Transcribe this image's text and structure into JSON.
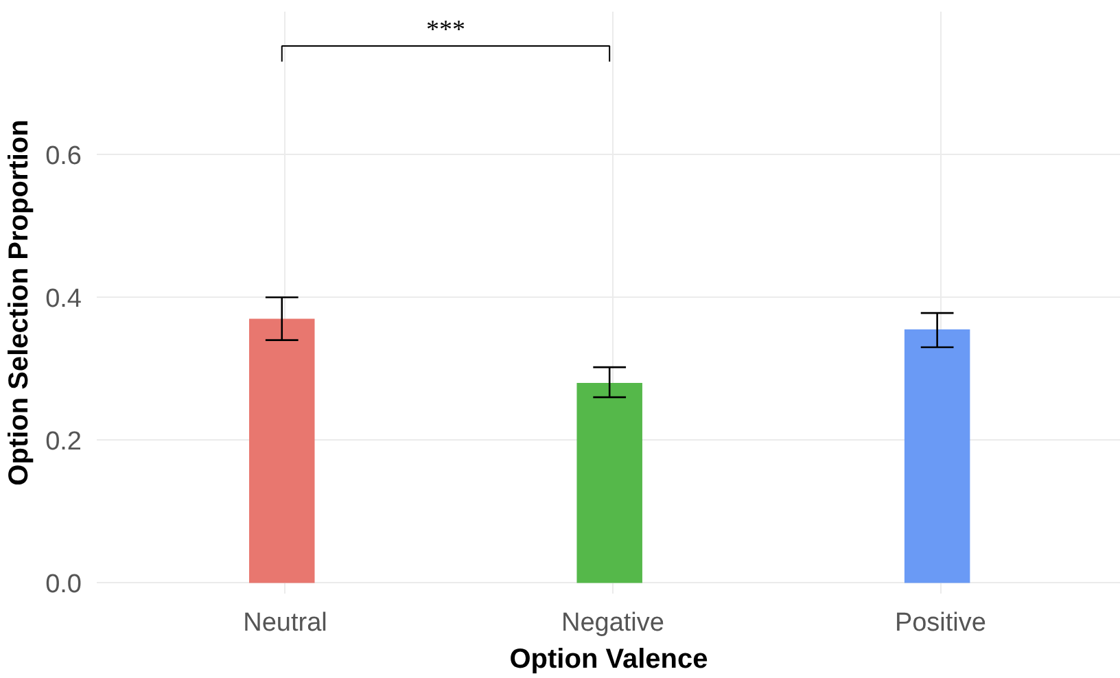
{
  "chart_data": {
    "type": "bar",
    "xlabel": "Option Valence",
    "ylabel": "Option Selection Proportion",
    "categories": [
      "Neutral",
      "Negative",
      "Positive"
    ],
    "series": [
      {
        "colors": [
          "#e8776f",
          "#55b84a",
          "#6a9af5"
        ],
        "values": [
          0.37,
          0.28,
          0.355
        ],
        "errors": [
          [
            0.34,
            0.4
          ],
          [
            0.26,
            0.302
          ],
          [
            0.33,
            0.378
          ]
        ]
      }
    ],
    "ylim": [
      -0.015,
      0.8
    ],
    "yticks": [
      {
        "value": 0,
        "label": "0.0"
      },
      {
        "value": 0.2,
        "label": "0.2"
      },
      {
        "value": 0.4,
        "label": "0.4"
      },
      {
        "value": 0.6,
        "label": "0.6"
      }
    ],
    "grid": true,
    "annotations": [
      "***"
    ]
  }
}
